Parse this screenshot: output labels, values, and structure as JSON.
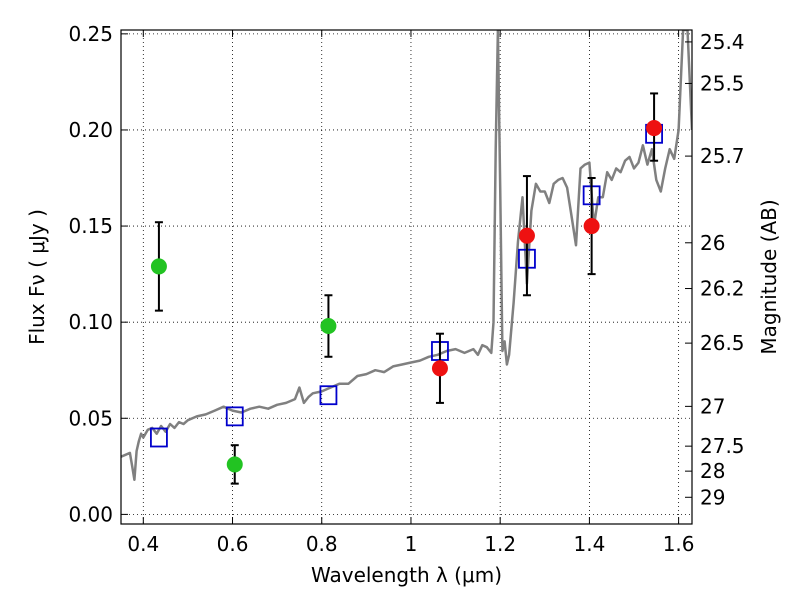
{
  "chart_data": {
    "type": "scatter",
    "title": "",
    "xlabel": "Wavelength  λ (μm)",
    "ylabel": "Flux  Fν  ( μJy )",
    "ylabel_right": "Magnitude (AB)",
    "xlim": [
      0.35,
      1.63
    ],
    "ylim": [
      -0.005,
      0.252
    ],
    "grid": true,
    "x_ticks": [
      {
        "value": 0.4,
        "label": "0.4"
      },
      {
        "value": 0.6,
        "label": "0.6"
      },
      {
        "value": 0.8,
        "label": "0.8"
      },
      {
        "value": 1.0,
        "label": "1"
      },
      {
        "value": 1.2,
        "label": "1.2"
      },
      {
        "value": 1.4,
        "label": "1.4"
      },
      {
        "value": 1.6,
        "label": "1.6"
      }
    ],
    "y_ticks": [
      {
        "value": 0.0,
        "label": "0.00"
      },
      {
        "value": 0.05,
        "label": "0.05"
      },
      {
        "value": 0.1,
        "label": "0.10"
      },
      {
        "value": 0.15,
        "label": "0.15"
      },
      {
        "value": 0.2,
        "label": "0.20"
      },
      {
        "value": 0.25,
        "label": "0.25"
      }
    ],
    "y2_ticks": [
      {
        "flux": 0.2458,
        "label": "25.4"
      },
      {
        "flux": 0.2242,
        "label": "25.5"
      },
      {
        "flux": 0.1864,
        "label": "25.7"
      },
      {
        "flux": 0.1413,
        "label": "26"
      },
      {
        "flux": 0.1175,
        "label": "26.2"
      },
      {
        "flux": 0.0891,
        "label": "26.5"
      },
      {
        "flux": 0.0562,
        "label": "27"
      },
      {
        "flux": 0.0355,
        "label": "27.5"
      },
      {
        "flux": 0.0225,
        "label": "28"
      },
      {
        "flux": 0.0089,
        "label": "29"
      }
    ],
    "series": [
      {
        "kind": "line",
        "color": "#808080",
        "x": [
          0.35,
          0.36,
          0.37,
          0.375,
          0.38,
          0.385,
          0.39,
          0.395,
          0.4,
          0.41,
          0.42,
          0.43,
          0.44,
          0.45,
          0.46,
          0.47,
          0.48,
          0.49,
          0.5,
          0.52,
          0.54,
          0.56,
          0.58,
          0.6,
          0.62,
          0.64,
          0.66,
          0.68,
          0.7,
          0.72,
          0.74,
          0.75,
          0.76,
          0.77,
          0.78,
          0.8,
          0.82,
          0.84,
          0.86,
          0.88,
          0.9,
          0.92,
          0.94,
          0.96,
          0.98,
          1.0,
          1.02,
          1.04,
          1.06,
          1.08,
          1.1,
          1.12,
          1.14,
          1.15,
          1.16,
          1.17,
          1.18,
          1.185,
          1.19,
          1.195,
          1.2,
          1.205,
          1.21,
          1.215,
          1.22,
          1.23,
          1.24,
          1.25,
          1.26,
          1.27,
          1.28,
          1.29,
          1.3,
          1.31,
          1.32,
          1.33,
          1.34,
          1.35,
          1.36,
          1.37,
          1.38,
          1.39,
          1.4,
          1.41,
          1.42,
          1.43,
          1.44,
          1.45,
          1.46,
          1.47,
          1.48,
          1.49,
          1.5,
          1.51,
          1.52,
          1.53,
          1.54,
          1.55,
          1.56,
          1.57,
          1.58,
          1.59,
          1.6,
          1.61,
          1.62,
          1.63
        ],
        "y": [
          0.03,
          0.031,
          0.032,
          0.025,
          0.018,
          0.033,
          0.038,
          0.042,
          0.04,
          0.044,
          0.045,
          0.042,
          0.046,
          0.043,
          0.047,
          0.045,
          0.048,
          0.047,
          0.049,
          0.051,
          0.052,
          0.054,
          0.056,
          0.054,
          0.053,
          0.055,
          0.056,
          0.055,
          0.057,
          0.058,
          0.06,
          0.066,
          0.058,
          0.061,
          0.063,
          0.064,
          0.066,
          0.068,
          0.068,
          0.072,
          0.073,
          0.075,
          0.074,
          0.077,
          0.078,
          0.079,
          0.08,
          0.082,
          0.083,
          0.085,
          0.086,
          0.084,
          0.086,
          0.083,
          0.088,
          0.087,
          0.084,
          0.1,
          0.19,
          0.252,
          0.17,
          0.085,
          0.09,
          0.078,
          0.083,
          0.11,
          0.142,
          0.165,
          0.12,
          0.158,
          0.172,
          0.168,
          0.168,
          0.162,
          0.172,
          0.174,
          0.175,
          0.17,
          0.155,
          0.14,
          0.18,
          0.182,
          0.183,
          0.15,
          0.165,
          0.165,
          0.178,
          0.174,
          0.18,
          0.178,
          0.184,
          0.186,
          0.18,
          0.183,
          0.192,
          0.182,
          0.19,
          0.174,
          0.168,
          0.18,
          0.19,
          0.185,
          0.2,
          0.252,
          0.252,
          0.2
        ]
      },
      {
        "kind": "squares",
        "color": "#0000cc",
        "x": [
          0.435,
          0.605,
          0.815,
          1.065,
          1.26,
          1.405,
          1.545
        ],
        "y": [
          0.04,
          0.051,
          0.062,
          0.085,
          0.133,
          0.166,
          0.198
        ]
      },
      {
        "kind": "points",
        "color": "#22c322",
        "x": [
          0.435,
          0.605,
          0.815
        ],
        "y": [
          0.129,
          0.026,
          0.098
        ],
        "yerr": [
          0.023,
          0.01,
          0.016
        ]
      },
      {
        "kind": "points",
        "color": "#ee1111",
        "x": [
          1.065,
          1.26,
          1.405,
          1.545
        ],
        "y": [
          0.076,
          0.145,
          0.15,
          0.201
        ],
        "yerr_low": [
          0.018,
          0.031,
          0.025,
          0.017
        ],
        "yerr_high": [
          0.018,
          0.031,
          0.025,
          0.018
        ]
      }
    ]
  }
}
